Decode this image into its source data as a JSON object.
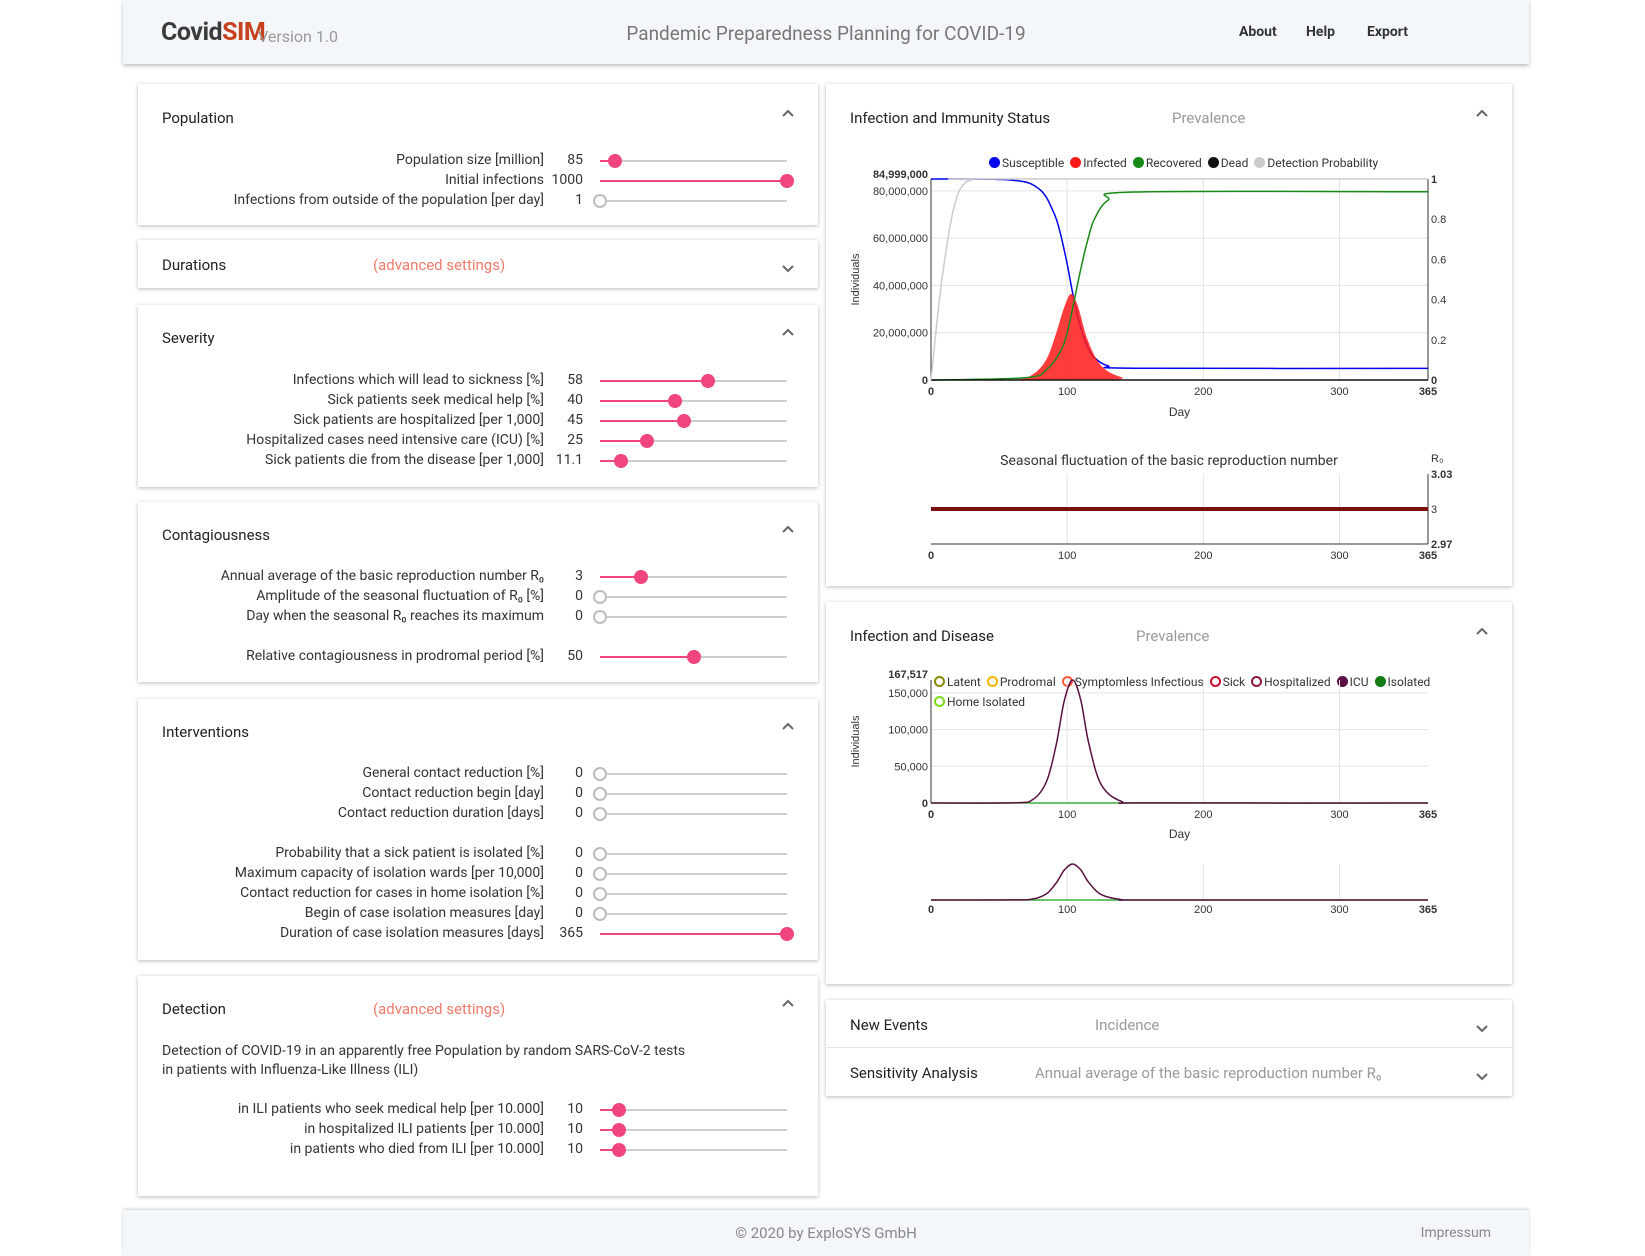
{
  "header": {
    "logo_covid": "Covid",
    "logo_sim": "SIM",
    "version": "Version 1.0",
    "title": "Pandemic Preparedness Planning for COVID-19",
    "nav": [
      "About",
      "Help",
      "Export"
    ]
  },
  "population": {
    "title": "Population",
    "rows": [
      {
        "label": "Population size  [million]",
        "value": "85",
        "fraction": 0.08
      },
      {
        "label": "Initial infections",
        "value": "1000",
        "fraction": 1.0
      },
      {
        "label": "Infections from outside of the population  [per day]",
        "value": "1",
        "fraction": 0.0
      }
    ]
  },
  "durations": {
    "title": "Durations",
    "advanced": "(advanced settings)"
  },
  "severity": {
    "title": "Severity",
    "rows": [
      {
        "label": "Infections which will lead to sickness  [%]",
        "value": "58",
        "fraction": 0.58
      },
      {
        "label": "Sick patients seek medical help  [%]",
        "value": "40",
        "fraction": 0.4
      },
      {
        "label": "Sick patients are hospitalized  [per 1,000]",
        "value": "45",
        "fraction": 0.45
      },
      {
        "label": "Hospitalized cases need intensive care (ICU)  [%]",
        "value": "25",
        "fraction": 0.25
      },
      {
        "label": "Sick patients die from the disease  [per 1,000]",
        "value": "11.1",
        "fraction": 0.11
      }
    ]
  },
  "contagiousness": {
    "title": "Contagiousness",
    "rows": [
      {
        "label": "Annual average of the basic reproduction number R₀",
        "value": "3",
        "fraction": 0.22
      },
      {
        "label": "Amplitude of the seasonal fluctuation of R₀  [%]",
        "value": "0",
        "fraction": 0.0
      },
      {
        "label": "Day when the seasonal R₀ reaches its maximum",
        "value": "0",
        "fraction": 0.0
      },
      {
        "label": "Relative contagiousness in prodromal period  [%]",
        "value": "50",
        "fraction": 0.5
      }
    ]
  },
  "interventions": {
    "title": "Interventions",
    "rows": [
      {
        "label": "General contact reduction  [%]",
        "value": "0",
        "fraction": 0.0
      },
      {
        "label": "Contact reduction begin  [day]",
        "value": "0",
        "fraction": 0.0
      },
      {
        "label": "Contact reduction duration  [days]",
        "value": "0",
        "fraction": 0.0
      },
      {
        "label": "Probability that a sick patient is isolated  [%]",
        "value": "0",
        "fraction": 0.0
      },
      {
        "label": "Maximum capacity of isolation wards  [per 10,000]",
        "value": "0",
        "fraction": 0.0
      },
      {
        "label": "Contact reduction for cases in home isolation  [%]",
        "value": "0",
        "fraction": 0.0
      },
      {
        "label": "Begin of case isolation measures  [day]",
        "value": "0",
        "fraction": 0.0
      },
      {
        "label": "Duration of case isolation measures  [days]",
        "value": "365",
        "fraction": 1.0
      }
    ]
  },
  "detection": {
    "title": "Detection",
    "advanced": "(advanced settings)",
    "desc_line1": "Detection of COVID-19 in an apparently free Population by random SARS-CoV-2 tests",
    "desc_line2": "in patients with Influenza-Like Illness (ILI)",
    "rows": [
      {
        "label": "in ILI patients who seek medical help  [per 10.000]",
        "value": "10",
        "fraction": 0.1
      },
      {
        "label": "in hospitalized ILI patients  [per 10.000]",
        "value": "10",
        "fraction": 0.1
      },
      {
        "label": "in patients who died from ILI  [per 10.000]",
        "value": "10",
        "fraction": 0.1
      }
    ]
  },
  "immunity_panel": {
    "title": "Infection and Immunity Status",
    "mode": "Prevalence",
    "legend": [
      {
        "label": "Susceptible",
        "color": "#0000ee"
      },
      {
        "label": "Infected",
        "color": "#ff1a1a"
      },
      {
        "label": "Recovered",
        "color": "#178a17"
      },
      {
        "label": "Dead",
        "color": "#111111"
      },
      {
        "label": "Detection Probability",
        "color": "#cccccc"
      }
    ],
    "seasonal_title": "Seasonal fluctuation of the basic reproduction number",
    "r0_label": "R₀"
  },
  "disease_panel": {
    "title": "Infection and Disease",
    "mode": "Prevalence",
    "legend": [
      {
        "label": "Latent",
        "color": "#8a8a00",
        "style": "ring"
      },
      {
        "label": "Prodromal",
        "color": "#f2b600",
        "style": "ring"
      },
      {
        "label": "Symptomless Infectious",
        "color": "#ff5a3a",
        "style": "ring"
      },
      {
        "label": "Sick",
        "color": "#c8102e",
        "style": "ring"
      },
      {
        "label": "Hospitalized",
        "color": "#8b1a3a",
        "style": "ring"
      },
      {
        "label": "ICU",
        "color": "#5a1040",
        "style": "dot"
      },
      {
        "label": "Isolated",
        "color": "#147a14",
        "style": "dot"
      },
      {
        "label": "Home Isolated",
        "color": "#7ddc1f",
        "style": "ring"
      }
    ]
  },
  "new_events": {
    "title": "New Events",
    "mode": "Incidence"
  },
  "sensitivity": {
    "title": "Sensitivity Analysis",
    "mode": "Annual average of the basic reproduction number R₀"
  },
  "footer": {
    "copyright": "© 2020 by ExploSYS GmbH",
    "impressum": "Impressum"
  },
  "chart_data": [
    {
      "type": "line",
      "title": "",
      "xlabel": "Day",
      "ylabel": "Individuals",
      "xlim": [
        0,
        365
      ],
      "ylim": [
        0,
        84999000
      ],
      "y2lim": [
        0,
        1
      ],
      "x_ticks": [
        "0",
        "100",
        "200",
        "300",
        "365"
      ],
      "y_ticks": [
        "0",
        "20,000,000",
        "40,000,000",
        "60,000,000",
        "80,000,000",
        "84,999,000"
      ],
      "y2_ticks": [
        "0",
        "0.2",
        "0.4",
        "0.6",
        "0.8",
        "1"
      ],
      "grid": true,
      "legend_position": "top",
      "series": [
        {
          "name": "Susceptible",
          "x": [
            0,
            60,
            80,
            90,
            95,
            100,
            105,
            110,
            115,
            120,
            130,
            150,
            365
          ],
          "y": [
            84999000,
            84500000,
            80500000,
            71000000,
            62000000,
            49000000,
            34000000,
            22000000,
            14000000,
            9500000,
            6000000,
            5000000,
            4900000
          ]
        },
        {
          "name": "Infected",
          "x": [
            0,
            60,
            75,
            85,
            92,
            98,
            103,
            108,
            115,
            125,
            140,
            160,
            365
          ],
          "y": [
            0,
            200000,
            2500000,
            9000000,
            20000000,
            31000000,
            36500000,
            31000000,
            17000000,
            6000000,
            1200000,
            100000,
            0
          ]
        },
        {
          "name": "Recovered",
          "x": [
            0,
            70,
            85,
            95,
            100,
            105,
            110,
            115,
            120,
            130,
            150,
            365
          ],
          "y": [
            0,
            1000000,
            4500000,
            12000000,
            20000000,
            33000000,
            47000000,
            59000000,
            68000000,
            76000000,
            79500000,
            79600000
          ]
        },
        {
          "name": "Dead",
          "x": [
            0,
            365
          ],
          "y": [
            0,
            0
          ]
        },
        {
          "name": "Detection Probability",
          "axis": "right",
          "x": [
            0,
            3,
            8,
            15,
            20,
            25,
            30,
            40,
            365
          ],
          "y": [
            0,
            0.2,
            0.5,
            0.8,
            0.93,
            0.98,
            0.995,
            1,
            1
          ]
        }
      ]
    },
    {
      "type": "line",
      "title": "Seasonal fluctuation of the basic reproduction number",
      "xlim": [
        0,
        365
      ],
      "ylim": [
        2.97,
        3.03
      ],
      "y_ticks": [
        "2.97",
        "3",
        "3.03"
      ],
      "x_ticks": [
        "0",
        "100",
        "200",
        "300",
        "365"
      ],
      "ylabel": "R₀",
      "series": [
        {
          "x": [
            0,
            365
          ],
          "y": [
            3,
            3
          ]
        }
      ]
    },
    {
      "type": "line",
      "xlabel": "Day",
      "ylabel": "Individuals",
      "xlim": [
        0,
        365
      ],
      "ylim": [
        0,
        167517
      ],
      "y_ticks": [
        "0",
        "50,000",
        "100,000",
        "150,000",
        "167,517"
      ],
      "x_ticks": [
        "0",
        "100",
        "200",
        "300",
        "365"
      ],
      "grid": true,
      "series": [
        {
          "name": "Hospitalized",
          "x": [
            0,
            60,
            75,
            85,
            92,
            98,
            104,
            110,
            116,
            125,
            140,
            160,
            365
          ],
          "y": [
            0,
            300,
            5000,
            30000,
            80000,
            140000,
            167517,
            140000,
            80000,
            25000,
            2000,
            100,
            0
          ]
        },
        {
          "name": "Isolated",
          "x": [
            0,
            365
          ],
          "y": [
            0,
            0
          ]
        }
      ]
    }
  ]
}
